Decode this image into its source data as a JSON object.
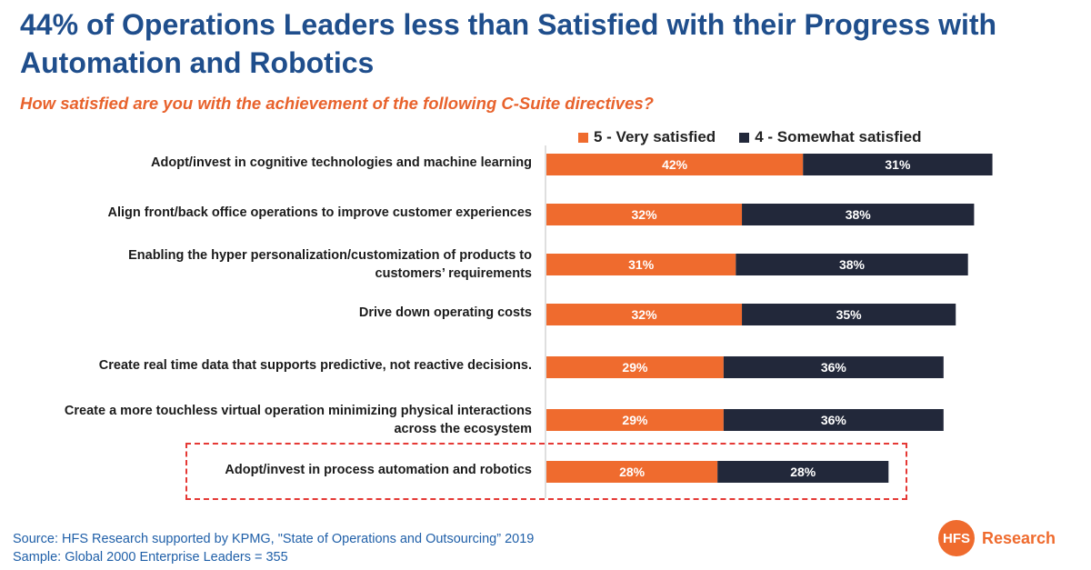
{
  "title": "44% of Operations Leaders less than Satisfied with their Progress with Automation and Robotics",
  "subtitle": "How satisfied are you with the achievement of the following C-Suite directives?",
  "colors": {
    "very_satisfied": "#ef6b2e",
    "somewhat_satisfied": "#22283a",
    "title": "#1f4e8c",
    "subtitle": "#e8622c",
    "highlight_border": "#e53935"
  },
  "source": {
    "line1": "Source: HFS Research supported by KPMG, \"State of Operations and Outsourcing” 2019",
    "line2": "Sample: Global 2000 Enterprise Leaders = 355"
  },
  "logo": {
    "circle_text": "HFS",
    "text": "Research"
  },
  "chart_data": {
    "type": "bar",
    "orientation": "horizontal",
    "stacked": true,
    "unit": "%",
    "categories": [
      [
        "Adopt/invest in cognitive technologies and machine learning"
      ],
      [
        "Align front/back office operations to improve customer experiences"
      ],
      [
        "Enabling the hyper personalization/customization of products to",
        "customers’ requirements"
      ],
      [
        "Drive down operating costs"
      ],
      [
        "Create real time data that supports predictive, not reactive decisions."
      ],
      [
        "Create a more touchless virtual operation minimizing physical interactions",
        "across the ecosystem"
      ],
      [
        "Adopt/invest in process automation and robotics"
      ]
    ],
    "series": [
      {
        "name": "5 - Very satisfied",
        "values": [
          42,
          32,
          31,
          32,
          29,
          29,
          28
        ]
      },
      {
        "name": "4 - Somewhat satisfied",
        "values": [
          31,
          38,
          38,
          35,
          36,
          36,
          28
        ]
      }
    ],
    "highlighted_category_index": 6,
    "legend_position": "top",
    "grid": false
  }
}
